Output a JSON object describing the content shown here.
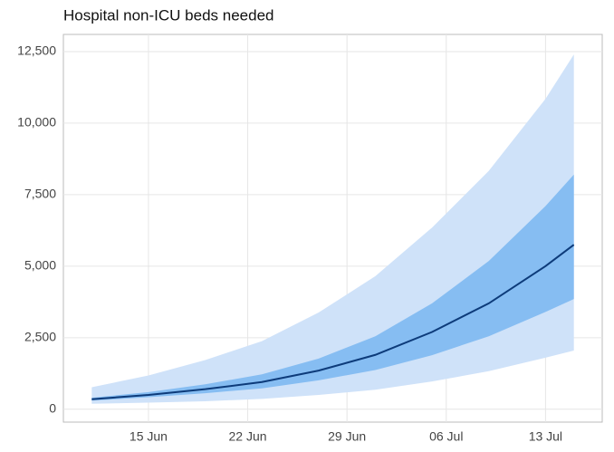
{
  "chart_data": {
    "type": "fan",
    "title": "Hospital non-ICU beds needed",
    "x": [
      "11 Jun",
      "15 Jun",
      "19 Jun",
      "23 Jun",
      "27 Jun",
      "1 Jul",
      "5 Jul",
      "9 Jul",
      "13 Jul",
      "15 Jul"
    ],
    "series": [
      {
        "color": "#0d3b7a",
        "values": [
          350,
          500,
          700,
          950,
          1350,
          1900,
          2700,
          3700,
          5000,
          5750
        ]
      }
    ],
    "bands": [
      {
        "color": "#cfe2f9",
        "lower": [
          190,
          230,
          280,
          360,
          500,
          680,
          970,
          1330,
          1800,
          2050
        ],
        "upper": [
          770,
          1180,
          1720,
          2380,
          3380,
          4650,
          6350,
          8330,
          10850,
          12400
        ]
      },
      {
        "color": "#86bdf2",
        "lower": [
          300,
          420,
          560,
          730,
          1010,
          1370,
          1890,
          2550,
          3400,
          3850
        ],
        "upper": [
          400,
          600,
          870,
          1220,
          1770,
          2550,
          3700,
          5180,
          7100,
          8200
        ]
      }
    ],
    "xlim": [
      "9 Jun",
      "17 Jul"
    ],
    "xticks": [
      "15 Jun",
      "22 Jun",
      "29 Jun",
      "06 Jul",
      "13 Jul"
    ],
    "ylim": [
      -450,
      13100
    ],
    "yticks": [
      0,
      {
        "value": 2500,
        "label": "2,500"
      },
      {
        "value": 5000,
        "label": "5,000"
      },
      {
        "value": 7500,
        "label": "7,500"
      },
      {
        "value": 10000,
        "label": "10,000"
      },
      {
        "value": 12500,
        "label": "12,500"
      }
    ],
    "grid": true
  }
}
